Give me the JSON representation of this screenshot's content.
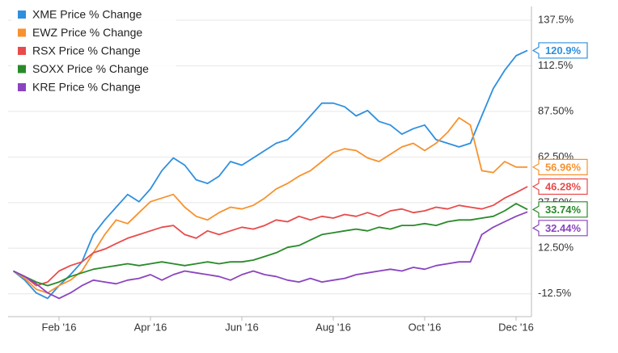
{
  "chart_data": {
    "type": "line",
    "categories": [
      null,
      null,
      null,
      null,
      "Feb '16",
      null,
      null,
      null,
      null,
      null,
      null,
      null,
      "Apr '16",
      null,
      null,
      null,
      null,
      null,
      null,
      null,
      "Jun '16",
      null,
      null,
      null,
      null,
      null,
      null,
      null,
      "Aug '16",
      null,
      null,
      null,
      null,
      null,
      null,
      null,
      "Oct '16",
      null,
      null,
      null,
      null,
      null,
      null,
      null,
      "Dec '16",
      null
    ],
    "ylim": [
      -25,
      145
    ],
    "yticks": [
      {
        "value": -12.5,
        "label": "-12.5%"
      },
      {
        "value": 12.5,
        "label": "12.50%"
      },
      {
        "value": 37.5,
        "label": "37.50%"
      },
      {
        "value": 62.5,
        "label": "62.50%"
      },
      {
        "value": 87.5,
        "label": "87.50%"
      },
      {
        "value": 112.5,
        "label": "112.5%"
      },
      {
        "value": 137.5,
        "label": "137.5%"
      }
    ],
    "grid": true,
    "legend": "top-left",
    "series": [
      {
        "name": "XME Price % Change",
        "color": "#2f8fdf",
        "values": [
          0,
          -5,
          -12,
          -15,
          -8,
          -2,
          5,
          20,
          28,
          35,
          42,
          38,
          45,
          55,
          62,
          58,
          50,
          48,
          52,
          60,
          58,
          62,
          66,
          70,
          72,
          78,
          85,
          92,
          92,
          90,
          85,
          88,
          82,
          80,
          75,
          78,
          80,
          72,
          70,
          68,
          70,
          85,
          100,
          110,
          118,
          120.9
        ],
        "last_label": {
          "value": 120.9,
          "label": "120.9%"
        }
      },
      {
        "name": "EWZ Price % Change",
        "color": "#f7922d",
        "values": [
          0,
          -4,
          -10,
          -12,
          -8,
          -5,
          0,
          10,
          20,
          28,
          26,
          32,
          38,
          40,
          42,
          35,
          30,
          28,
          32,
          35,
          34,
          36,
          40,
          45,
          48,
          52,
          55,
          60,
          65,
          67,
          66,
          62,
          60,
          64,
          68,
          70,
          66,
          70,
          76,
          84,
          80,
          55,
          54,
          60,
          57,
          56.96
        ],
        "last_label": {
          "value": 56.96,
          "label": "56.96%"
        }
      },
      {
        "name": "RSX Price % Change",
        "color": "#e84b4b",
        "values": [
          0,
          -3,
          -8,
          -6,
          0,
          3,
          5,
          10,
          12,
          15,
          18,
          20,
          22,
          24,
          25,
          20,
          18,
          22,
          20,
          22,
          24,
          23,
          25,
          28,
          27,
          30,
          28,
          30,
          29,
          31,
          30,
          32,
          30,
          33,
          34,
          32,
          33,
          35,
          34,
          36,
          35,
          34,
          36,
          40,
          43,
          46.28
        ],
        "last_label": {
          "value": 46.28,
          "label": "46.28%"
        }
      },
      {
        "name": "SOXX Price % Change",
        "color": "#2a8a2a",
        "values": [
          0,
          -3,
          -6,
          -8,
          -6,
          -3,
          -1,
          1,
          2,
          3,
          4,
          3,
          4,
          5,
          4,
          3,
          4,
          5,
          4,
          5,
          5,
          6,
          8,
          10,
          13,
          14,
          17,
          20,
          21,
          22,
          23,
          22,
          24,
          23,
          25,
          25,
          26,
          25,
          27,
          28,
          28,
          29,
          30,
          33,
          37,
          33.74
        ],
        "last_label": {
          "value": 33.74,
          "label": "33.74%"
        }
      },
      {
        "name": "KRE Price % Change",
        "color": "#8a44c0",
        "values": [
          0,
          -3,
          -7,
          -12,
          -15,
          -12,
          -8,
          -5,
          -6,
          -7,
          -5,
          -4,
          -2,
          -5,
          -2,
          0,
          -1,
          -2,
          -3,
          -5,
          -2,
          0,
          -2,
          -3,
          -5,
          -6,
          -4,
          -6,
          -5,
          -4,
          -2,
          -1,
          0,
          1,
          0,
          2,
          1,
          3,
          4,
          5,
          5,
          20,
          24,
          27,
          30,
          32.44
        ],
        "last_label": {
          "value": 32.44,
          "label": "32.44%"
        }
      }
    ]
  }
}
